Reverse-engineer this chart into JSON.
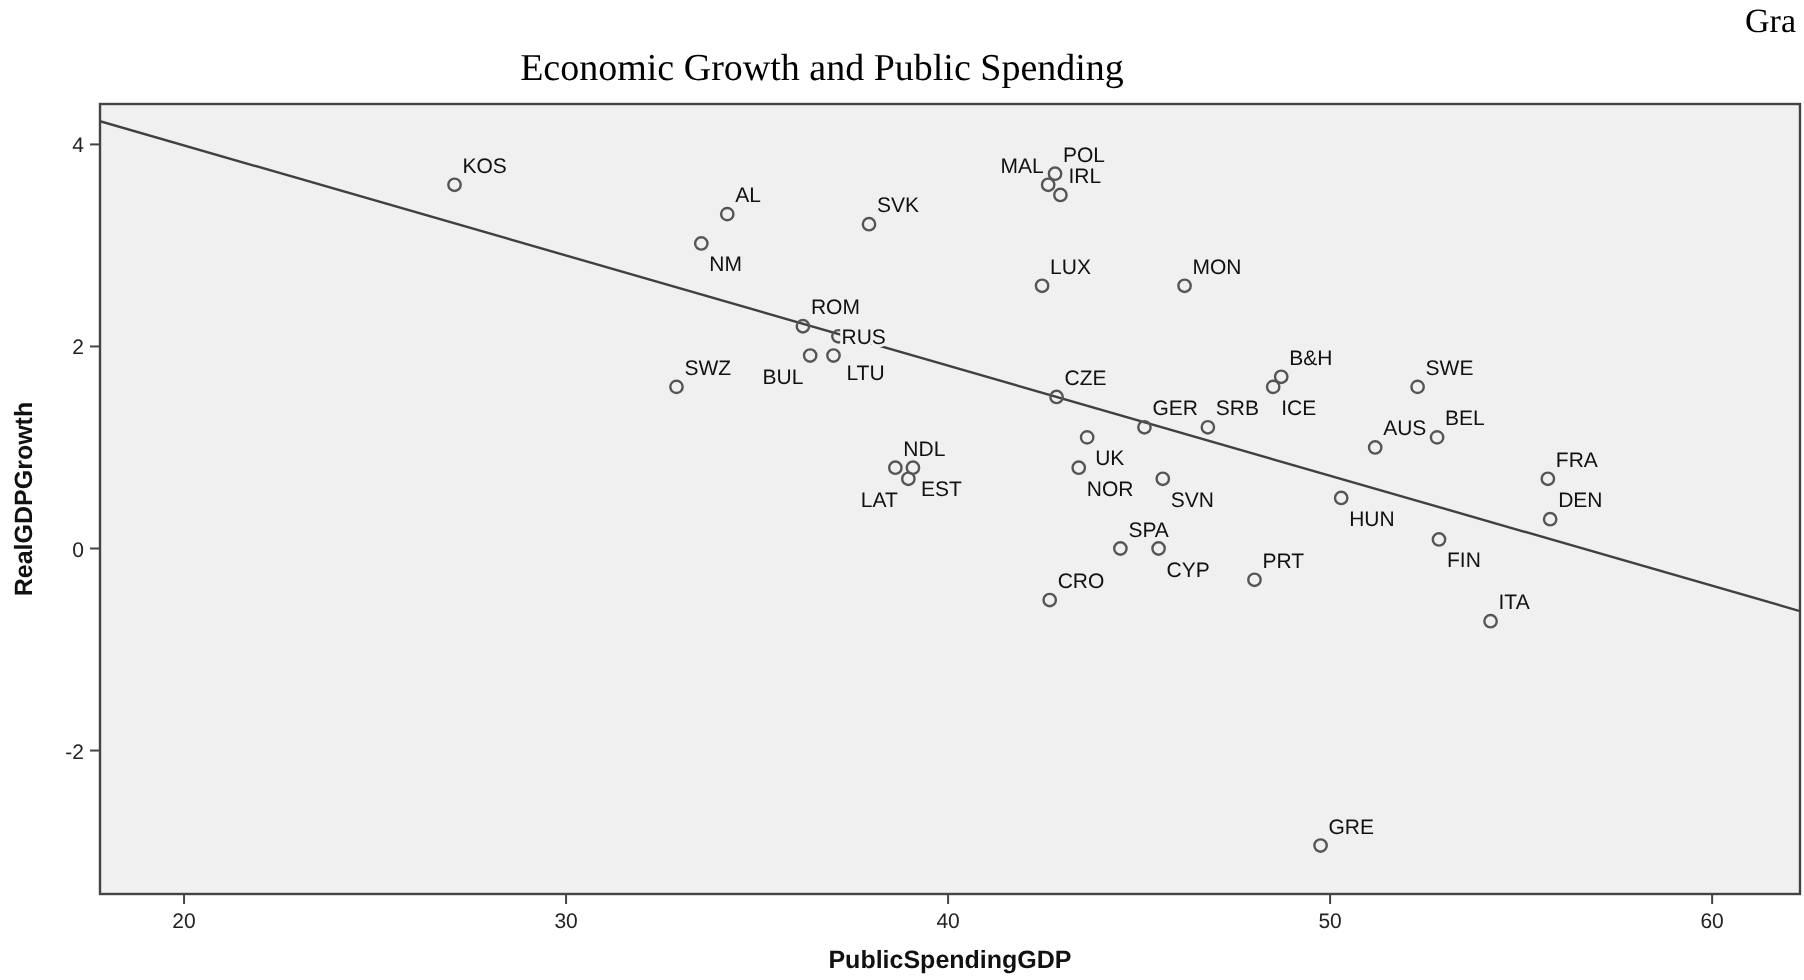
{
  "chart_data": {
    "type": "scatter",
    "title": "Economic Growth and Public Spending",
    "xlabel": "PublicSpendingGDP",
    "ylabel": "RealGDPGrowth",
    "annotations": [
      "Gra"
    ],
    "xlim": [
      17.8,
      62.3
    ],
    "ylim": [
      -3.42,
      4.4
    ],
    "xticks": [
      20,
      30,
      40,
      50,
      60
    ],
    "yticks": [
      -2,
      0,
      2,
      4
    ],
    "grid": false,
    "marker": "circle",
    "series": [
      {
        "color": "#555555",
        "x": [
          27.08,
          34.22,
          33.54,
          37.93,
          36.2,
          37.13,
          36.39,
          37.0,
          32.89,
          38.62,
          39.08,
          38.96,
          42.62,
          42.8,
          42.94,
          42.46,
          46.19,
          42.84,
          43.64,
          45.14,
          46.8,
          48.72,
          48.51,
          43.42,
          45.62,
          52.29,
          51.18,
          52.8,
          50.29,
          55.7,
          55.76,
          52.85,
          44.51,
          45.51,
          48.02,
          42.66,
          54.2,
          49.75
        ],
        "values": [
          3.6,
          3.31,
          3.02,
          3.21,
          2.2,
          2.1,
          1.91,
          1.91,
          1.6,
          0.8,
          0.8,
          0.69,
          3.6,
          3.71,
          3.5,
          2.6,
          2.6,
          1.5,
          1.1,
          1.2,
          1.2,
          1.7,
          1.6,
          0.8,
          0.69,
          1.6,
          1.0,
          1.1,
          0.5,
          0.69,
          0.29,
          0.09,
          0.0,
          0.0,
          -0.31,
          -0.51,
          -0.72,
          -2.94
        ],
        "value_labels": [
          "KOS",
          "AL",
          "NM",
          "SVK",
          "ROM",
          "LTU",
          "BUL",
          "RUS",
          "SWZ",
          "NDL",
          "EST",
          "LAT",
          "MAL",
          "POL",
          "IRL",
          "LUX",
          "MON",
          "CZE",
          "UK",
          "GER",
          "SRB",
          "B&H",
          "ICE",
          "NOR",
          "SVN",
          "SWE",
          "AUS",
          "BEL",
          "HUN",
          "FRA",
          "DEN",
          "FIN",
          "SPA",
          "CYP",
          "PRT",
          "CRO",
          "ITA",
          "GRE"
        ]
      },
      {
        "type": "line",
        "marker": "none",
        "color": "#404040",
        "x": [
          17.8,
          62.3
        ],
        "values": [
          4.23,
          -0.62
        ]
      }
    ]
  }
}
